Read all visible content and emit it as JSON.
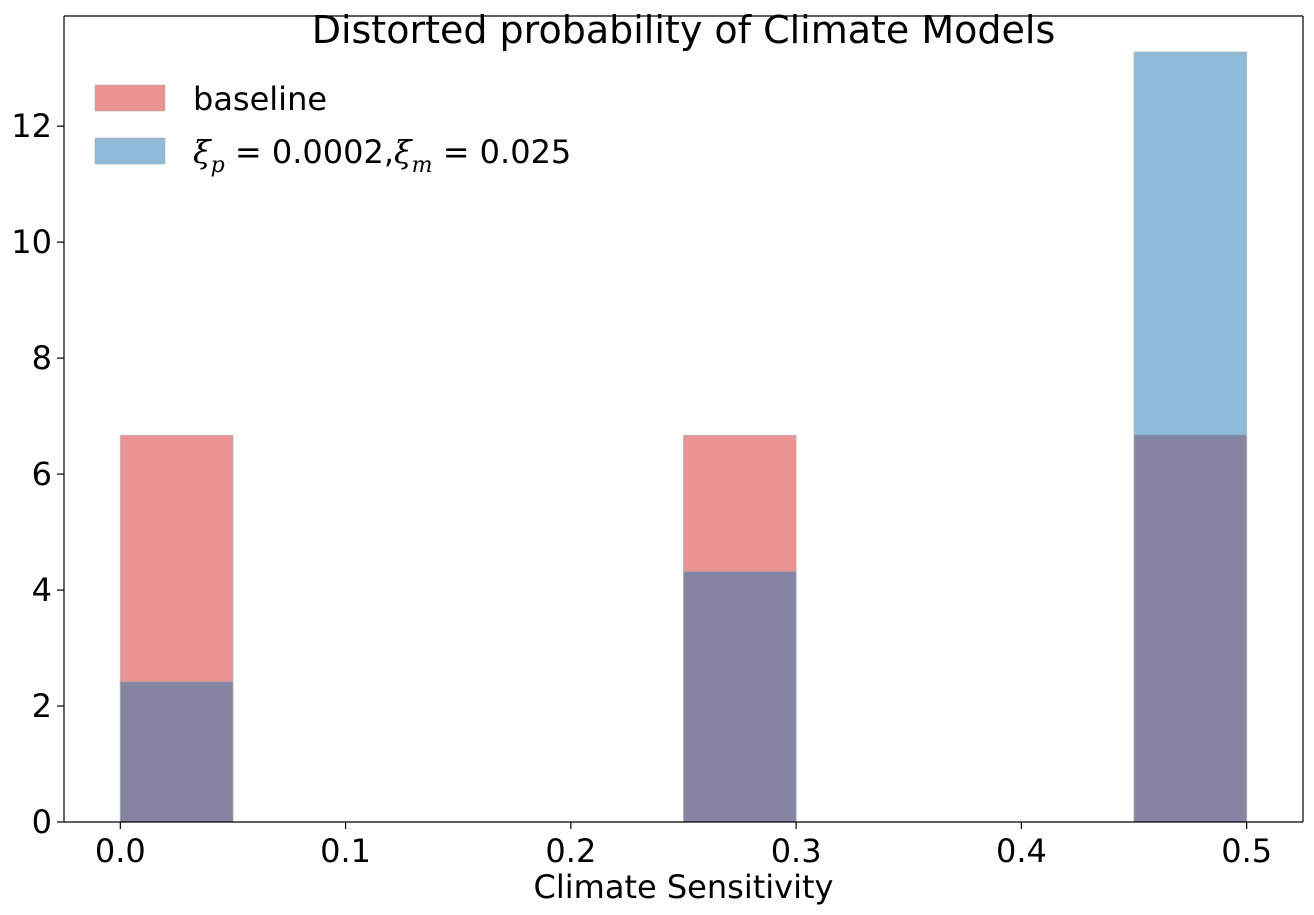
{
  "chart_data": {
    "type": "bar",
    "title": "Distorted probability of Climate Models",
    "xlabel": "Climate Sensitivity",
    "ylabel": "",
    "xlim": [
      -0.025,
      0.525
    ],
    "ylim": [
      0,
      13.9
    ],
    "xticks": [
      0.0,
      0.1,
      0.2,
      0.3,
      0.4,
      0.5
    ],
    "xtick_labels": [
      "0.0",
      "0.1",
      "0.2",
      "0.3",
      "0.4",
      "0.5"
    ],
    "yticks": [
      0,
      2,
      4,
      6,
      8,
      10,
      12
    ],
    "ytick_labels": [
      "0",
      "2",
      "4",
      "6",
      "8",
      "10",
      "12"
    ],
    "bins": [
      {
        "x0": 0.0,
        "x1": 0.05
      },
      {
        "x0": 0.25,
        "x1": 0.3
      },
      {
        "x0": 0.45,
        "x1": 0.5
      }
    ],
    "series": [
      {
        "name": "baseline",
        "color": "#d62728",
        "alpha": 0.5,
        "values": [
          6.67,
          6.67,
          6.67
        ]
      },
      {
        "name": "ξp = 0.0002,ξm = 0.025",
        "color": "#1f77b4",
        "alpha": 0.5,
        "values": [
          2.42,
          4.32,
          13.28
        ]
      }
    ],
    "legend": {
      "position": "top-left",
      "entries": [
        {
          "label_parts": [
            {
              "t": "baseline",
              "style": "plain"
            }
          ]
        },
        {
          "label_parts": [
            {
              "t": "ξ",
              "style": "math"
            },
            {
              "t": "p",
              "style": "sub"
            },
            {
              "t": " = 0.0002,",
              "style": "plain"
            },
            {
              "t": "ξ",
              "style": "math"
            },
            {
              "t": "m",
              "style": "sub"
            },
            {
              "t": " = 0.025",
              "style": "plain"
            }
          ]
        }
      ]
    },
    "grid": false
  }
}
